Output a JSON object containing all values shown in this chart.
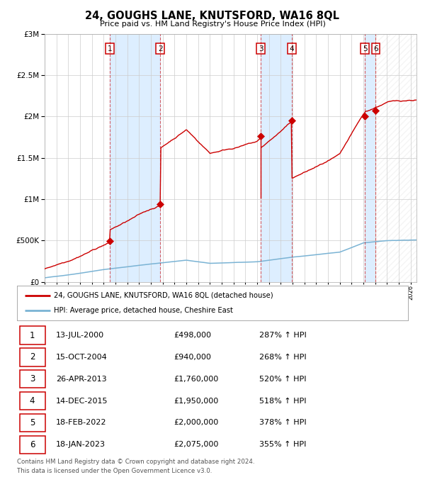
{
  "title": "24, GOUGHS LANE, KNUTSFORD, WA16 8QL",
  "subtitle": "Price paid vs. HM Land Registry's House Price Index (HPI)",
  "legend_line1": "24, GOUGHS LANE, KNUTSFORD, WA16 8QL (detached house)",
  "legend_line2": "HPI: Average price, detached house, Cheshire East",
  "footer1": "Contains HM Land Registry data © Crown copyright and database right 2024.",
  "footer2": "This data is licensed under the Open Government Licence v3.0.",
  "transactions": [
    {
      "num": 1,
      "date": "13-JUL-2000",
      "price": "£498,000",
      "pct": "287% ↑ HPI",
      "x_year": 2000.53,
      "y_val": 498000
    },
    {
      "num": 2,
      "date": "15-OCT-2004",
      "price": "£940,000",
      "pct": "268% ↑ HPI",
      "x_year": 2004.79,
      "y_val": 940000
    },
    {
      "num": 3,
      "date": "26-APR-2013",
      "price": "£1,760,000",
      "pct": "520% ↑ HPI",
      "x_year": 2013.32,
      "y_val": 1760000
    },
    {
      "num": 4,
      "date": "14-DEC-2015",
      "price": "£1,950,000",
      "pct": "518% ↑ HPI",
      "x_year": 2015.95,
      "y_val": 1950000
    },
    {
      "num": 5,
      "date": "18-FEB-2022",
      "price": "£2,000,000",
      "pct": "378% ↑ HPI",
      "x_year": 2022.13,
      "y_val": 2000000
    },
    {
      "num": 6,
      "date": "18-JAN-2023",
      "price": "£2,075,000",
      "pct": "355% ↑ HPI",
      "x_year": 2023.05,
      "y_val": 2075000
    }
  ],
  "hpi_color": "#7ab3d4",
  "price_color": "#cc0000",
  "bg_color": "#ffffff",
  "grid_color": "#cccccc",
  "shade_color": "#ddeeff",
  "xmin": 1995,
  "xmax": 2026.5,
  "ymin": 0,
  "ymax": 3000000,
  "yticks": [
    0,
    500000,
    1000000,
    1500000,
    2000000,
    2500000,
    3000000
  ]
}
